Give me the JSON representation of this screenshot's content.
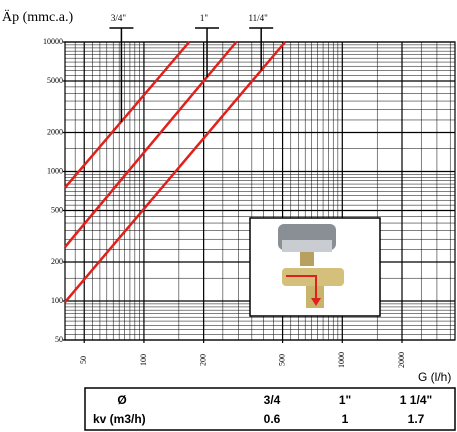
{
  "chart_data": {
    "type": "line",
    "y_label": "Äp (mmc.a.)",
    "x_label": "G (l/h)",
    "log_x": true,
    "log_y": true,
    "grid": true,
    "xlim": [
      40,
      3700
    ],
    "ylim": [
      50,
      10000
    ],
    "xticks": [
      50,
      100,
      200,
      500,
      1000,
      2000
    ],
    "yticks": [
      50,
      100,
      200,
      500,
      1000,
      2000,
      5000,
      10000
    ],
    "series": [
      {
        "color": "#e0201c",
        "x": [
          40,
          169
        ],
        "values": [
          750,
          10000
        ]
      },
      {
        "color": "#e0201c",
        "x": [
          40,
          292
        ],
        "values": [
          261,
          10000
        ]
      },
      {
        "color": "#e0201c",
        "x": [
          40,
          515
        ],
        "values": [
          98,
          10000
        ]
      }
    ],
    "markers": [
      {
        "label": "3/4\"",
        "x": 77,
        "y": 2410
      },
      {
        "label": "1\"",
        "x": 208,
        "y": 5370
      },
      {
        "label": "11/4\"",
        "x": 390,
        "y": 6040
      }
    ]
  },
  "table": {
    "header": [
      "Ø",
      "3/4",
      "1\"",
      "1 1/4\""
    ],
    "rows": [
      [
        "kv (m3/h)",
        "0.6",
        "1",
        "1.7"
      ]
    ]
  }
}
